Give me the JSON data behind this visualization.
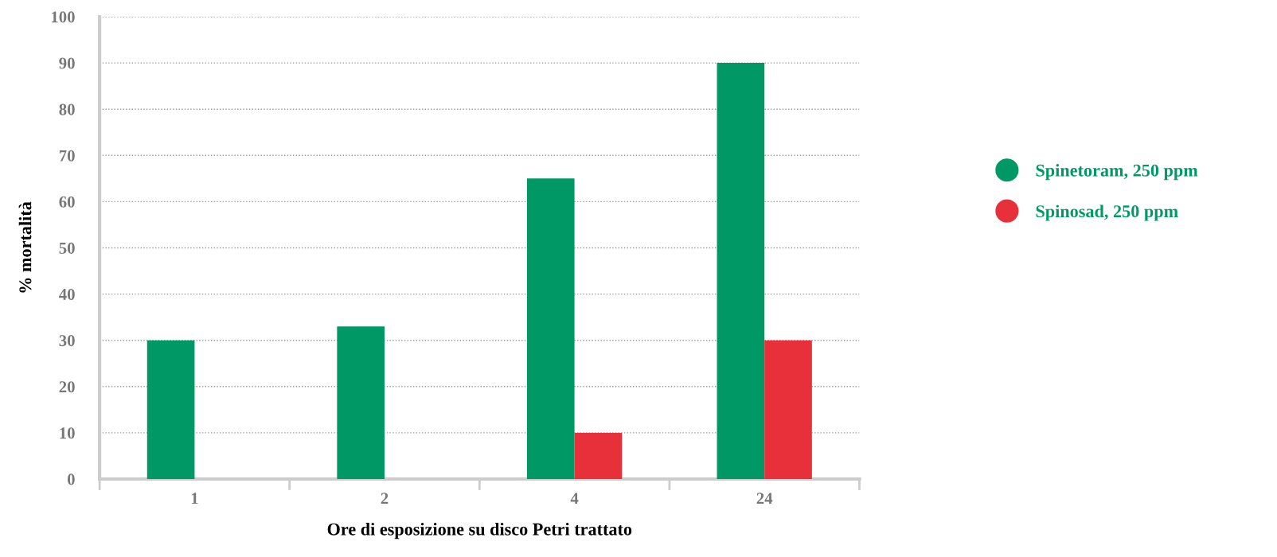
{
  "chart_data": {
    "type": "bar",
    "xlabel": "Ore di esposizione su disco Petri trattato",
    "ylabel": "% mortalità",
    "categories": [
      "1",
      "2",
      "4",
      "24"
    ],
    "series": [
      {
        "name": "Spinetoram, 250 ppm",
        "color": "#009966",
        "values": [
          30,
          33,
          65,
          90
        ]
      },
      {
        "name": "Spinosad, 250 ppm",
        "color": "#e8303a",
        "values": [
          0,
          0,
          10,
          30
        ]
      }
    ],
    "ylim": [
      0,
      100
    ],
    "yticks": [
      0,
      10,
      20,
      30,
      40,
      50,
      60,
      70,
      80,
      90,
      100
    ],
    "grid": "y",
    "legend": "right"
  }
}
